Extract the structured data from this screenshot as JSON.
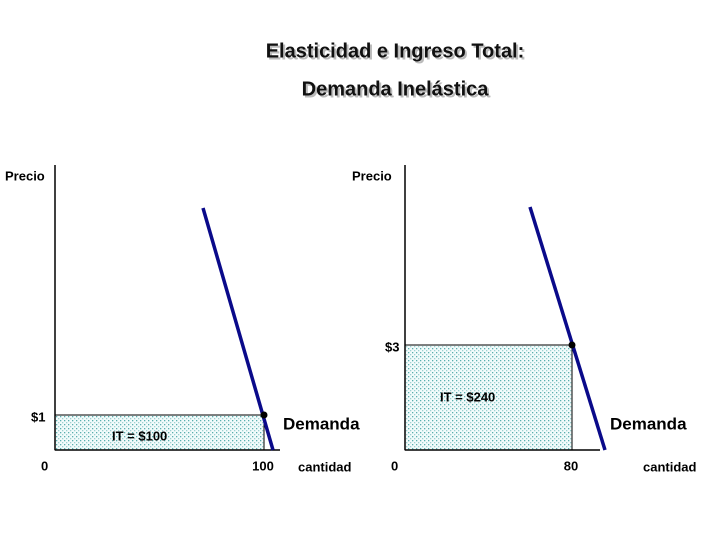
{
  "title": {
    "line1": "Elasticidad e Ingreso Total:",
    "line2": "Demanda Inelástica"
  },
  "panels": [
    {
      "y_axis_label": "Precio",
      "x_axis_label": "cantidad",
      "origin": "0",
      "price_label": "$1",
      "quantity_label": "100",
      "revenue_label": "IT = $100",
      "curve_label": "Demanda"
    },
    {
      "y_axis_label": "Precio",
      "x_axis_label": "cantidad",
      "origin": "0",
      "price_label": "$3",
      "quantity_label": "80",
      "revenue_label": "IT = $240",
      "curve_label": "Demanda"
    }
  ]
}
